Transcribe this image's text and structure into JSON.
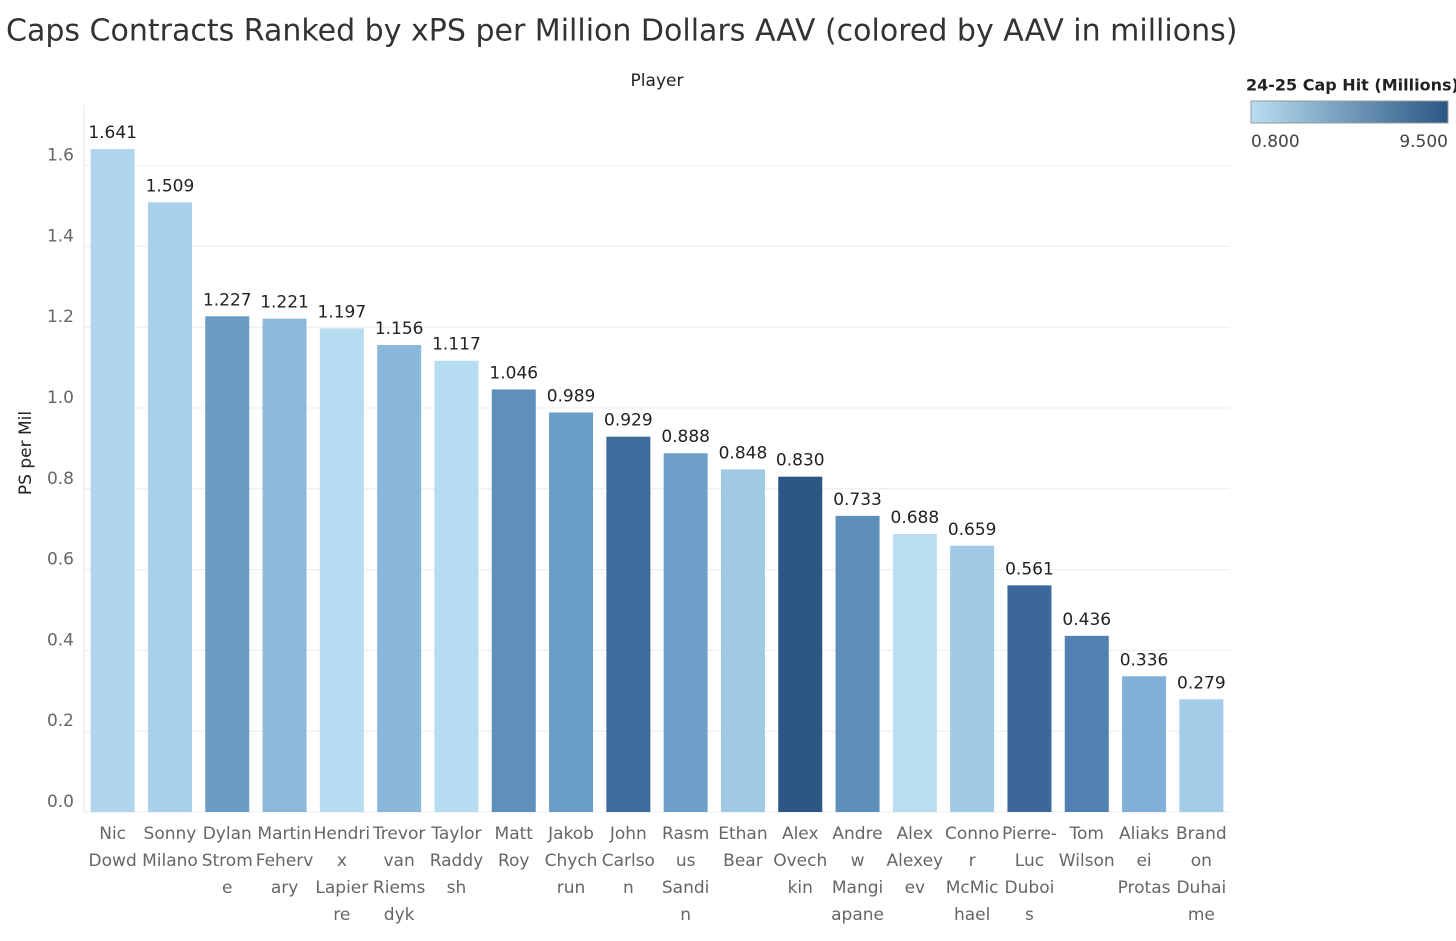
{
  "chart_data": {
    "type": "bar",
    "title": "Caps Contracts Ranked by xPS per Million Dollars AAV (colored by AAV in millions)",
    "x_label": "Player",
    "y_label": "PS per Mil",
    "categories": [
      "Nic Dowd",
      "Sonny Milano",
      "Dylan Strome",
      "Martin Fehervary",
      "Hendrix Lapierre",
      "Trevor van Riemsdyk",
      "Taylor Raddysh",
      "Matt Roy",
      "Jakob Chychrun",
      "John Carlson",
      "Rasmus Sandin",
      "Ethan Bear",
      "Alex Ovechkin",
      "Andrew Mangiapane",
      "Alex Alexeyev",
      "Connor McMichael",
      "Pierre-Luc Dubois",
      "Tom Wilson",
      "Aliaksei Protas",
      "Brandon Duhaime"
    ],
    "values": [
      1.641,
      1.509,
      1.227,
      1.221,
      1.197,
      1.156,
      1.117,
      1.046,
      0.989,
      0.929,
      0.888,
      0.848,
      0.83,
      0.733,
      0.688,
      0.659,
      0.561,
      0.436,
      0.336,
      0.279
    ],
    "value_labels": [
      "1.641",
      "1.509",
      "1.227",
      "1.221",
      "1.197",
      "1.156",
      "1.117",
      "1.046",
      "0.989",
      "0.929",
      "0.888",
      "0.848",
      "0.830",
      "0.733",
      "0.688",
      "0.659",
      "0.561",
      "0.436",
      "0.336",
      "0.279"
    ],
    "colors": [
      "#b0d5ec",
      "#a9d0ea",
      "#6a9bc3",
      "#8ab9dc",
      "#b5dcf0",
      "#8ab8db",
      "#b5dcf0",
      "#5f8fbb",
      "#6b9ec7",
      "#3d6c9c",
      "#6e9fc8",
      "#a0c9e5",
      "#2a5783",
      "#5e8eba",
      "#b9ddf1",
      "#a0c9e5",
      "#3b6898",
      "#5081b1",
      "#80b0d8",
      "#a2cce7"
    ],
    "ylim": [
      0,
      1.75
    ],
    "yticks": [
      {
        "value": 0,
        "label": "0.0"
      },
      0.2,
      0.4,
      0.6,
      0.8,
      {
        "value": 1,
        "label": "1.0"
      },
      1.2,
      1.4,
      1.6
    ],
    "grid": true,
    "legend": {
      "title": "24-25 Cap Hit (Millions)",
      "position": "top-right",
      "min": {
        "value": 0.8,
        "label": "0.800"
      },
      "max": {
        "value": 9.5,
        "label": "9.500"
      },
      "colors": [
        "#b9ddf1",
        "#2a5783"
      ]
    }
  }
}
